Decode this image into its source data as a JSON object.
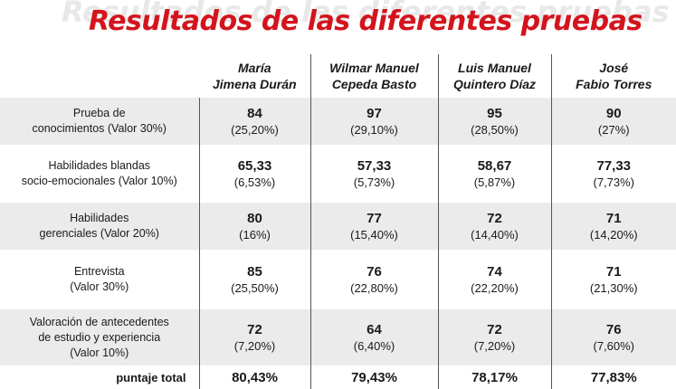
{
  "title": "Resultados de las diferentes pruebas",
  "candidates": [
    {
      "line1": "María",
      "line2": "Jimena Durán"
    },
    {
      "line1": "Wilmar Manuel",
      "line2": "Cepeda Basto"
    },
    {
      "line1": "Luis Manuel",
      "line2": "Quintero Díaz"
    },
    {
      "line1": "José",
      "line2": "Fabio Torres"
    }
  ],
  "rows": [
    {
      "label": [
        "Prueba de",
        "conocimientos (Valor 30%)"
      ],
      "scores": [
        "84",
        "97",
        "95",
        "90"
      ],
      "pcts": [
        "(25,20%)",
        "(29,10%)",
        "(28,50%)",
        "(27%)"
      ]
    },
    {
      "label": [
        "Habilidades blandas",
        "socio-emocionales (Valor 10%)"
      ],
      "scores": [
        "65,33",
        "57,33",
        "58,67",
        "77,33"
      ],
      "pcts": [
        "(6,53%)",
        "(5,73%)",
        "(5,87%)",
        "(7,73%)"
      ]
    },
    {
      "label": [
        "Habilidades",
        "gerenciales (Valor 20%)"
      ],
      "scores": [
        "80",
        "77",
        "72",
        "71"
      ],
      "pcts": [
        "(16%)",
        "(15,40%)",
        "(14,40%)",
        "(14,20%)"
      ]
    },
    {
      "label": [
        "Entrevista",
        "(Valor 30%)"
      ],
      "scores": [
        "85",
        "76",
        "74",
        "71"
      ],
      "pcts": [
        "(25,50%)",
        "(22,80%)",
        "(22,20%)",
        "(21,30%)"
      ]
    },
    {
      "label": [
        "Valoración de antecedentes",
        "de estudio y experiencia",
        "(Valor 10%)"
      ],
      "scores": [
        "72",
        "64",
        "72",
        "76"
      ],
      "pcts": [
        "(7,20%)",
        "(6,40%)",
        "(7,20%)",
        "(7,60%)"
      ]
    }
  ],
  "total": {
    "label": "puntaje total",
    "values": [
      "80,43%",
      "79,43%",
      "78,17%",
      "77,83%"
    ]
  }
}
